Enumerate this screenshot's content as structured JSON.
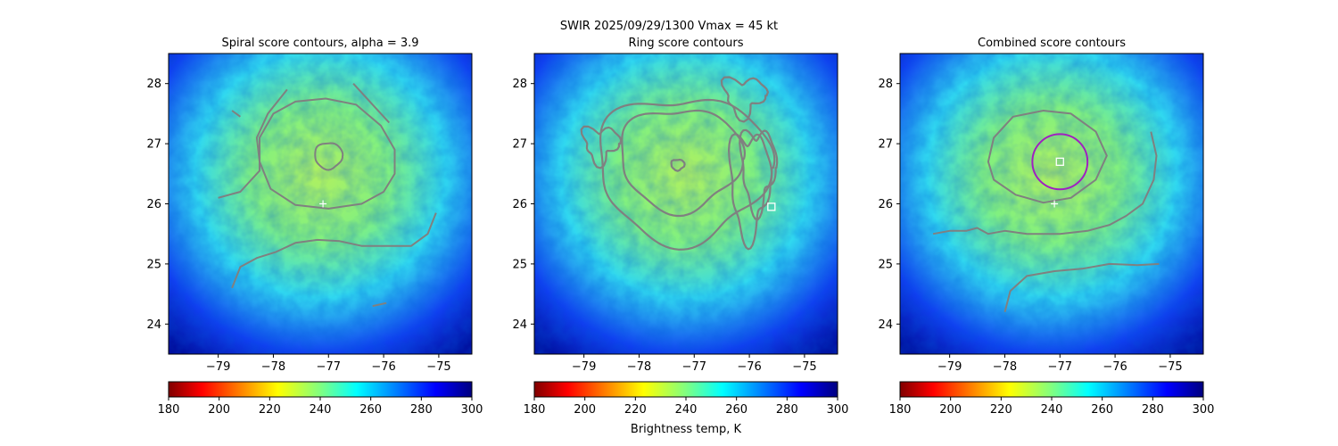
{
  "figure": {
    "suptitle_line1": "SWIR  2025/09/29/1300    Vmax = 45 kt",
    "colorbar_label": "Brightness temp, K"
  },
  "chart_data": [
    {
      "type": "heatmap",
      "title": "Spiral score contours, alpha =  3.9",
      "xlim": [
        -79.9,
        -74.4
      ],
      "ylim": [
        23.5,
        28.5
      ],
      "xticks": [
        -79,
        -78,
        -77,
        -76,
        -75
      ],
      "yticks": [
        24,
        25,
        26,
        27,
        28
      ],
      "markers": [
        {
          "kind": "plus",
          "x": -77.1,
          "y": 26.0
        }
      ],
      "colorbar": {
        "min": 180,
        "max": 300,
        "ticks": [
          180,
          200,
          220,
          240,
          260,
          280,
          300
        ],
        "colormap": "jet_r"
      }
    },
    {
      "type": "heatmap",
      "title": "Ring score contours",
      "xlim": [
        -79.9,
        -74.4
      ],
      "ylim": [
        23.5,
        28.5
      ],
      "xticks": [
        -79,
        -78,
        -77,
        -76,
        -75
      ],
      "yticks": [
        24,
        25,
        26,
        27,
        28
      ],
      "markers": [
        {
          "kind": "square",
          "x": -75.6,
          "y": 25.95
        }
      ],
      "colorbar": {
        "min": 180,
        "max": 300,
        "ticks": [
          180,
          200,
          220,
          240,
          260,
          280,
          300
        ],
        "colormap": "jet_r"
      }
    },
    {
      "type": "heatmap",
      "title": "Combined score contours",
      "xlim": [
        -79.9,
        -74.4
      ],
      "ylim": [
        23.5,
        28.5
      ],
      "xticks": [
        -79,
        -78,
        -77,
        -76,
        -75
      ],
      "yticks": [
        24,
        25,
        26,
        27,
        28
      ],
      "markers": [
        {
          "kind": "plus",
          "x": -77.1,
          "y": 26.0
        },
        {
          "kind": "square",
          "x": -77.0,
          "y": 26.7
        }
      ],
      "ring": {
        "center": [
          -77.0,
          26.7
        ],
        "radius_deg": 0.5,
        "color": "#a020c0"
      },
      "colorbar": {
        "min": 180,
        "max": 300,
        "ticks": [
          180,
          200,
          220,
          240,
          260,
          280,
          300
        ],
        "colormap": "jet_r"
      }
    }
  ],
  "colors": {
    "contour": "#808080",
    "ring": "#a020c0",
    "marker": "#ffffff"
  }
}
